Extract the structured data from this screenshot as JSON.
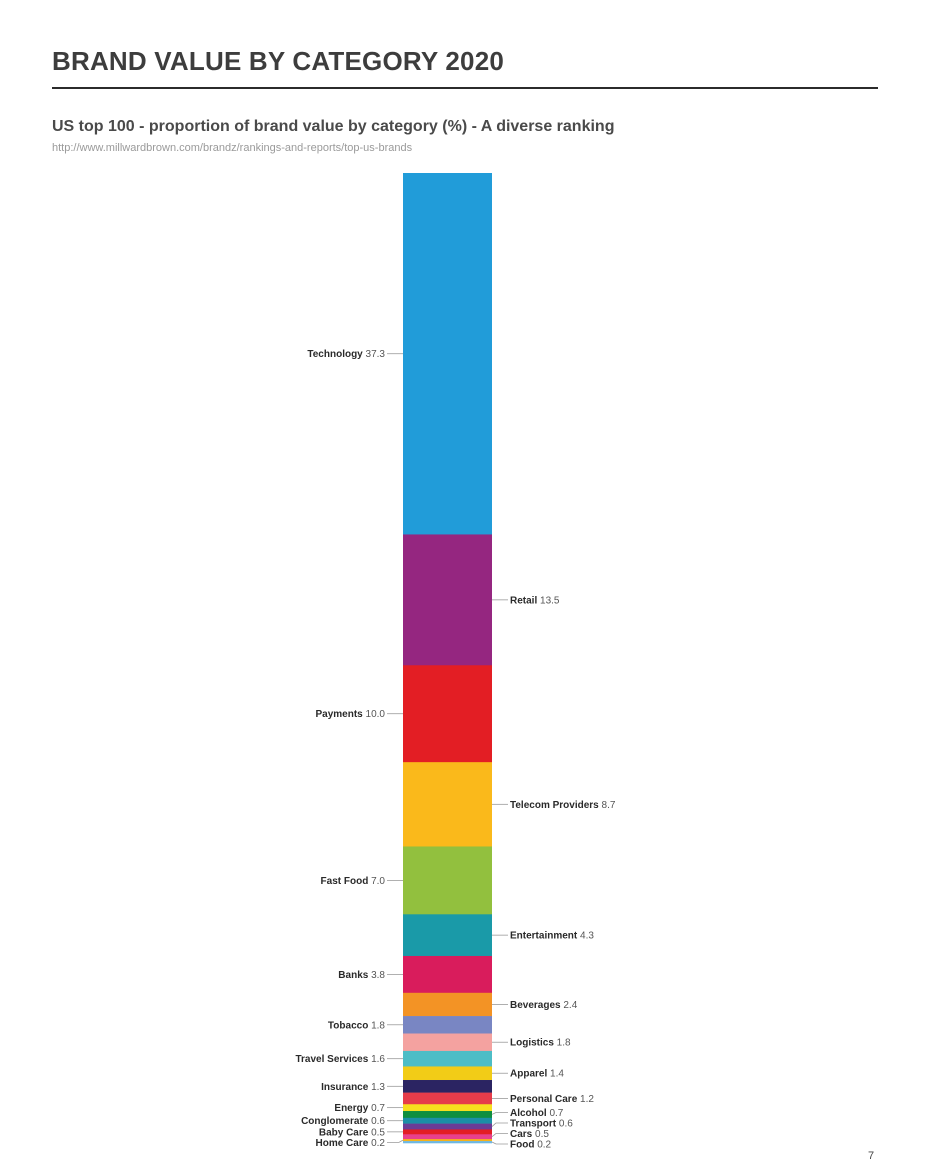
{
  "header": {
    "title": "BRAND VALUE BY CATEGORY 2020",
    "subtitle": "US top 100 - proportion of brand value by category (%) - A diverse ranking",
    "source": "http://www.millwardbrown.com/brandz/rankings-and-reports/top-us-brands"
  },
  "footer": {
    "page_number": "7"
  },
  "chart_data": {
    "type": "bar",
    "orientation": "stacked-vertical",
    "title": "US top 100 - proportion of brand value by category (%) - A diverse ranking",
    "unit": "%",
    "segments": [
      {
        "label": "Technology",
        "value": 37.3,
        "value_text": "37.3",
        "color": "#219cd9",
        "side": "left"
      },
      {
        "label": "Retail",
        "value": 13.5,
        "value_text": "13.5",
        "color": "#952680",
        "side": "right"
      },
      {
        "label": "Payments",
        "value": 10.0,
        "value_text": "10.0",
        "color": "#e31e24",
        "side": "left"
      },
      {
        "label": "Telecom Providers",
        "value": 8.7,
        "value_text": "8.7",
        "color": "#fab91b",
        "side": "right"
      },
      {
        "label": "Fast Food",
        "value": 7.0,
        "value_text": "7.0",
        "color": "#92c03e",
        "side": "left"
      },
      {
        "label": "Entertainment",
        "value": 4.3,
        "value_text": "4.3",
        "color": "#1a9aa8",
        "side": "right"
      },
      {
        "label": "Banks",
        "value": 3.8,
        "value_text": "3.8",
        "color": "#d91c5c",
        "side": "left"
      },
      {
        "label": "Beverages",
        "value": 2.4,
        "value_text": "2.4",
        "color": "#f39325",
        "side": "right"
      },
      {
        "label": "Tobacco",
        "value": 1.8,
        "value_text": "1.8",
        "color": "#7986c3",
        "side": "left"
      },
      {
        "label": "Logistics",
        "value": 1.8,
        "value_text": "1.8",
        "color": "#f4a2a0",
        "side": "right"
      },
      {
        "label": "Travel Services",
        "value": 1.6,
        "value_text": "1.6",
        "color": "#4dbdc6",
        "side": "left"
      },
      {
        "label": "Apparel",
        "value": 1.4,
        "value_text": "1.4",
        "color": "#f2cc17",
        "side": "right"
      },
      {
        "label": "Insurance",
        "value": 1.3,
        "value_text": "1.3",
        "color": "#2b2462",
        "side": "left"
      },
      {
        "label": "Personal Care",
        "value": 1.2,
        "value_text": "1.2",
        "color": "#e63c4a",
        "side": "right"
      },
      {
        "label": "Energy",
        "value": 0.7,
        "value_text": "0.7",
        "color": "#f7df1e",
        "side": "left"
      },
      {
        "label": "Alcohol",
        "value": 0.7,
        "value_text": "0.7",
        "color": "#0f8f3f",
        "side": "right"
      },
      {
        "label": "Conglomerate",
        "value": 0.6,
        "value_text": "0.6",
        "color": "#1c8fa6",
        "side": "left"
      },
      {
        "label": "Transport",
        "value": 0.6,
        "value_text": "0.6",
        "color": "#6c3c96",
        "side": "right"
      },
      {
        "label": "Baby Care",
        "value": 0.5,
        "value_text": "0.5",
        "color": "#e31e24",
        "side": "left"
      },
      {
        "label": "Cars",
        "value": 0.5,
        "value_text": "0.5",
        "color": "#e8418c",
        "side": "right"
      },
      {
        "label": "Home Care",
        "value": 0.2,
        "value_text": "0.2",
        "color": "#f6b21a",
        "side": "left"
      },
      {
        "label": "Food",
        "value": 0.2,
        "value_text": "0.2",
        "color": "#6fb8e3",
        "side": "right"
      }
    ]
  }
}
